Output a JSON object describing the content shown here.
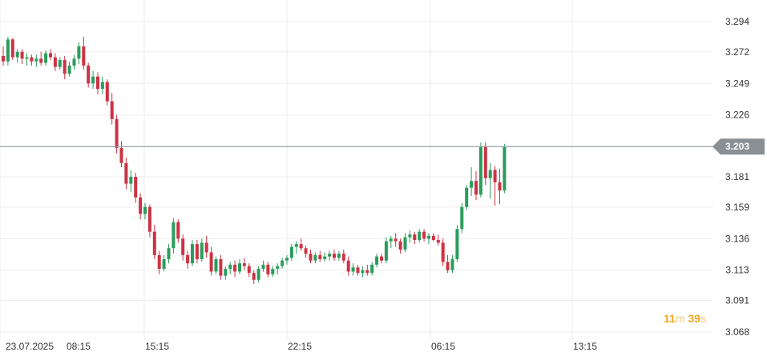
{
  "chart_data": {
    "type": "candlestick",
    "x_tick_labels": [
      "23.07.2025",
      "08:15",
      "15:15",
      "22:15",
      "06:15",
      "13:15"
    ],
    "y_ticks": [
      "3.294",
      "3.272",
      "3.249",
      "3.226",
      "3.181",
      "3.159",
      "3.136",
      "3.113",
      "3.091",
      "3.068"
    ],
    "ylim": [
      3.06,
      3.303
    ],
    "current_price": "3.203",
    "grid": true,
    "colors": {
      "up": "#2a9d5c",
      "down": "#cc3344",
      "grid": "#eeeeee",
      "price_line": "#9aa0a6",
      "price_tag": "#8a8f94",
      "axis_text": "#333333"
    },
    "candles": [
      [
        3.269,
        3.276,
        3.262,
        3.265
      ],
      [
        3.265,
        3.283,
        3.262,
        3.281
      ],
      [
        3.281,
        3.282,
        3.266,
        3.268
      ],
      [
        3.268,
        3.274,
        3.264,
        3.272
      ],
      [
        3.272,
        3.274,
        3.263,
        3.267
      ],
      [
        3.267,
        3.271,
        3.262,
        3.268
      ],
      [
        3.268,
        3.27,
        3.262,
        3.265
      ],
      [
        3.265,
        3.27,
        3.261,
        3.267
      ],
      [
        3.267,
        3.272,
        3.262,
        3.264
      ],
      [
        3.264,
        3.273,
        3.262,
        3.271
      ],
      [
        3.271,
        3.274,
        3.266,
        3.268
      ],
      [
        3.268,
        3.271,
        3.258,
        3.261
      ],
      [
        3.261,
        3.268,
        3.259,
        3.266
      ],
      [
        3.266,
        3.269,
        3.252,
        3.256
      ],
      [
        3.256,
        3.265,
        3.254,
        3.262
      ],
      [
        3.262,
        3.27,
        3.259,
        3.267
      ],
      [
        3.267,
        3.279,
        3.263,
        3.276
      ],
      [
        3.276,
        3.283,
        3.259,
        3.262
      ],
      [
        3.262,
        3.264,
        3.246,
        3.249
      ],
      [
        3.249,
        3.258,
        3.245,
        3.254
      ],
      [
        3.254,
        3.257,
        3.241,
        3.245
      ],
      [
        3.245,
        3.254,
        3.241,
        3.25
      ],
      [
        3.25,
        3.252,
        3.233,
        3.236
      ],
      [
        3.236,
        3.242,
        3.219,
        3.223
      ],
      [
        3.223,
        3.226,
        3.198,
        3.202
      ],
      [
        3.202,
        3.207,
        3.188,
        3.191
      ],
      [
        3.191,
        3.195,
        3.172,
        3.176
      ],
      [
        3.176,
        3.186,
        3.17,
        3.181
      ],
      [
        3.181,
        3.184,
        3.162,
        3.166
      ],
      [
        3.166,
        3.169,
        3.15,
        3.154
      ],
      [
        3.154,
        3.162,
        3.15,
        3.159
      ],
      [
        3.159,
        3.161,
        3.137,
        3.141
      ],
      [
        3.141,
        3.146,
        3.121,
        3.124
      ],
      [
        3.124,
        3.127,
        3.11,
        3.114
      ],
      [
        3.114,
        3.124,
        3.112,
        3.121
      ],
      [
        3.121,
        3.132,
        3.118,
        3.129
      ],
      [
        3.129,
        3.151,
        3.125,
        3.148
      ],
      [
        3.148,
        3.15,
        3.133,
        3.136
      ],
      [
        3.136,
        3.139,
        3.12,
        3.124
      ],
      [
        3.124,
        3.127,
        3.114,
        3.118
      ],
      [
        3.118,
        3.135,
        3.116,
        3.132
      ],
      [
        3.132,
        3.135,
        3.118,
        3.121
      ],
      [
        3.121,
        3.136,
        3.119,
        3.133
      ],
      [
        3.133,
        3.138,
        3.122,
        3.126
      ],
      [
        3.126,
        3.13,
        3.109,
        3.112
      ],
      [
        3.112,
        3.123,
        3.11,
        3.121
      ],
      [
        3.121,
        3.124,
        3.106,
        3.109
      ],
      [
        3.109,
        3.116,
        3.106,
        3.114
      ],
      [
        3.114,
        3.119,
        3.11,
        3.117
      ],
      [
        3.117,
        3.12,
        3.108,
        3.112
      ],
      [
        3.112,
        3.121,
        3.11,
        3.118
      ],
      [
        3.118,
        3.122,
        3.113,
        3.116
      ],
      [
        3.116,
        3.118,
        3.108,
        3.111
      ],
      [
        3.111,
        3.113,
        3.103,
        3.106
      ],
      [
        3.106,
        3.116,
        3.104,
        3.114
      ],
      [
        3.114,
        3.12,
        3.112,
        3.117
      ],
      [
        3.117,
        3.119,
        3.108,
        3.11
      ],
      [
        3.11,
        3.116,
        3.108,
        3.114
      ],
      [
        3.114,
        3.118,
        3.11,
        3.116
      ],
      [
        3.116,
        3.122,
        3.114,
        3.12
      ],
      [
        3.12,
        3.124,
        3.117,
        3.122
      ],
      [
        3.122,
        3.132,
        3.12,
        3.13
      ],
      [
        3.13,
        3.134,
        3.125,
        3.132
      ],
      [
        3.132,
        3.136,
        3.127,
        3.129
      ],
      [
        3.129,
        3.131,
        3.122,
        3.125
      ],
      [
        3.125,
        3.128,
        3.118,
        3.12
      ],
      [
        3.12,
        3.126,
        3.118,
        3.124
      ],
      [
        3.124,
        3.127,
        3.119,
        3.121
      ],
      [
        3.121,
        3.126,
        3.119,
        3.123
      ],
      [
        3.123,
        3.127,
        3.12,
        3.125
      ],
      [
        3.125,
        3.128,
        3.12,
        3.122
      ],
      [
        3.122,
        3.127,
        3.12,
        3.125
      ],
      [
        3.125,
        3.128,
        3.118,
        3.12
      ],
      [
        3.12,
        3.123,
        3.109,
        3.112
      ],
      [
        3.112,
        3.118,
        3.109,
        3.115
      ],
      [
        3.115,
        3.117,
        3.109,
        3.111
      ],
      [
        3.111,
        3.116,
        3.108,
        3.113
      ],
      [
        3.113,
        3.117,
        3.109,
        3.111
      ],
      [
        3.111,
        3.119,
        3.109,
        3.117
      ],
      [
        3.117,
        3.125,
        3.115,
        3.123
      ],
      [
        3.123,
        3.125,
        3.118,
        3.12
      ],
      [
        3.12,
        3.137,
        3.118,
        3.134
      ],
      [
        3.134,
        3.138,
        3.129,
        3.136
      ],
      [
        3.136,
        3.14,
        3.13,
        3.134
      ],
      [
        3.134,
        3.136,
        3.125,
        3.128
      ],
      [
        3.128,
        3.14,
        3.126,
        3.137
      ],
      [
        3.137,
        3.142,
        3.133,
        3.139
      ],
      [
        3.139,
        3.141,
        3.132,
        3.135
      ],
      [
        3.135,
        3.143,
        3.133,
        3.141
      ],
      [
        3.141,
        3.143,
        3.134,
        3.136
      ],
      [
        3.136,
        3.14,
        3.132,
        3.138
      ],
      [
        3.138,
        3.14,
        3.134,
        3.135
      ],
      [
        3.135,
        3.139,
        3.131,
        3.133
      ],
      [
        3.133,
        3.136,
        3.116,
        3.119
      ],
      [
        3.119,
        3.124,
        3.111,
        3.113
      ],
      [
        3.113,
        3.124,
        3.111,
        3.121
      ],
      [
        3.121,
        3.146,
        3.119,
        3.143
      ],
      [
        3.143,
        3.162,
        3.14,
        3.159
      ],
      [
        3.159,
        3.175,
        3.157,
        3.173
      ],
      [
        3.173,
        3.188,
        3.167,
        3.178
      ],
      [
        3.178,
        3.185,
        3.164,
        3.168
      ],
      [
        3.168,
        3.206,
        3.166,
        3.203
      ],
      [
        3.203,
        3.206,
        3.175,
        3.18
      ],
      [
        3.18,
        3.191,
        3.165,
        3.186
      ],
      [
        3.186,
        3.189,
        3.16,
        3.177
      ],
      [
        3.177,
        3.187,
        3.161,
        3.171
      ],
      [
        3.171,
        3.205,
        3.169,
        3.203
      ]
    ]
  },
  "countdown": {
    "minutes": "11",
    "minutes_unit": "m",
    "seconds": "39",
    "seconds_unit": "s"
  }
}
